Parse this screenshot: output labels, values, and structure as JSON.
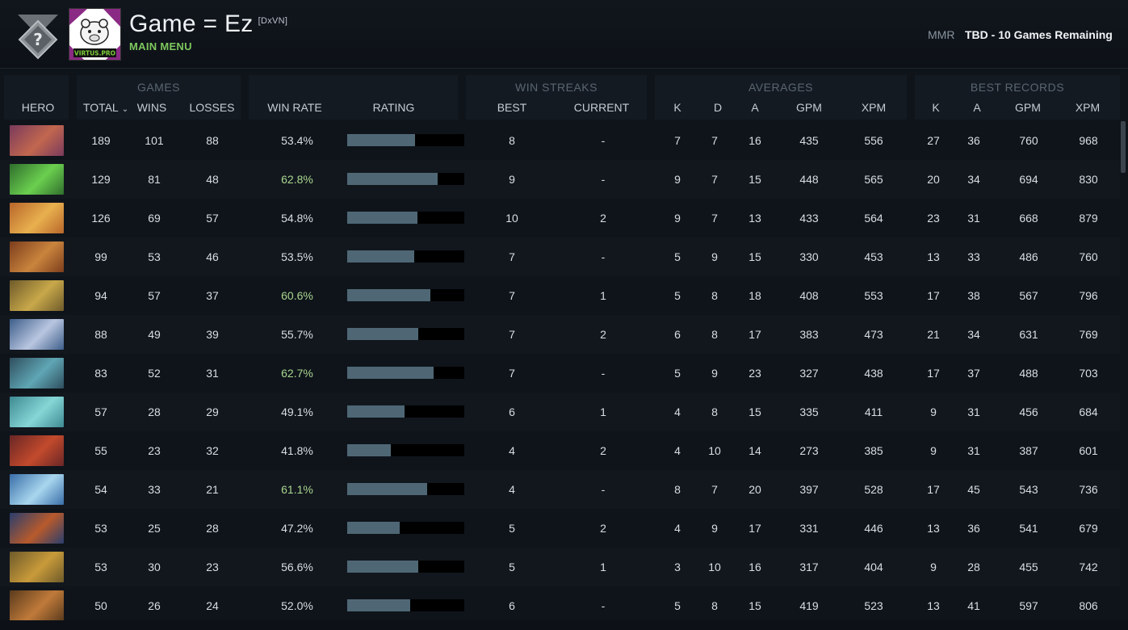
{
  "header": {
    "player_name": "Game = Ez",
    "player_tag": "[DxVN]",
    "menu_label": "MAIN MENU",
    "avatar_team_text": "VIRTUS.PRO",
    "mmr_label": "MMR",
    "mmr_value": "TBD - 10 Games Remaining",
    "rank_icon": "unranked-question-medal-icon"
  },
  "groups": {
    "games": "GAMES",
    "win_streaks": "WIN STREAKS",
    "averages": "AVERAGES",
    "best_records": "BEST RECORDS"
  },
  "columns": {
    "hero": "HERO",
    "total": "TOTAL",
    "wins": "WINS",
    "losses": "LOSSES",
    "win_rate": "WIN RATE",
    "rating": "RATING",
    "best": "BEST",
    "current": "CURRENT",
    "avg_k": "K",
    "avg_d": "D",
    "avg_a": "A",
    "avg_gpm": "GPM",
    "avg_xpm": "XPM",
    "rec_k": "K",
    "rec_a": "A",
    "rec_gpm": "GPM",
    "rec_xpm": "XPM"
  },
  "colors": {
    "accent_green": "#7ec85e",
    "high_winrate": "#a9d68e",
    "rating_bar": "#4f6775"
  },
  "rows": [
    {
      "hero_icon": "hero-portrait-1",
      "total": "189",
      "wins": "101",
      "losses": "88",
      "win_rate": "53.4%",
      "rating": 0.58,
      "best": "8",
      "current": "-",
      "k": "7",
      "d": "7",
      "a": "16",
      "gpm": "435",
      "xpm": "556",
      "rk": "27",
      "ra": "36",
      "rgpm": "760",
      "rxpm": "968",
      "hi": false
    },
    {
      "hero_icon": "hero-portrait-2",
      "total": "129",
      "wins": "81",
      "losses": "48",
      "win_rate": "62.8%",
      "rating": 0.77,
      "best": "9",
      "current": "-",
      "k": "9",
      "d": "7",
      "a": "15",
      "gpm": "448",
      "xpm": "565",
      "rk": "20",
      "ra": "34",
      "rgpm": "694",
      "rxpm": "830",
      "hi": true
    },
    {
      "hero_icon": "hero-portrait-3",
      "total": "126",
      "wins": "69",
      "losses": "57",
      "win_rate": "54.8%",
      "rating": 0.6,
      "best": "10",
      "current": "2",
      "k": "9",
      "d": "7",
      "a": "13",
      "gpm": "433",
      "xpm": "564",
      "rk": "23",
      "ra": "31",
      "rgpm": "668",
      "rxpm": "879",
      "hi": false
    },
    {
      "hero_icon": "hero-portrait-4",
      "total": "99",
      "wins": "53",
      "losses": "46",
      "win_rate": "53.5%",
      "rating": 0.57,
      "best": "7",
      "current": "-",
      "k": "5",
      "d": "9",
      "a": "15",
      "gpm": "330",
      "xpm": "453",
      "rk": "13",
      "ra": "33",
      "rgpm": "486",
      "rxpm": "760",
      "hi": false
    },
    {
      "hero_icon": "hero-portrait-5",
      "total": "94",
      "wins": "57",
      "losses": "37",
      "win_rate": "60.6%",
      "rating": 0.71,
      "best": "7",
      "current": "1",
      "k": "5",
      "d": "8",
      "a": "18",
      "gpm": "408",
      "xpm": "553",
      "rk": "17",
      "ra": "38",
      "rgpm": "567",
      "rxpm": "796",
      "hi": true
    },
    {
      "hero_icon": "hero-portrait-6",
      "total": "88",
      "wins": "49",
      "losses": "39",
      "win_rate": "55.7%",
      "rating": 0.61,
      "best": "7",
      "current": "2",
      "k": "6",
      "d": "8",
      "a": "17",
      "gpm": "383",
      "xpm": "473",
      "rk": "21",
      "ra": "34",
      "rgpm": "631",
      "rxpm": "769",
      "hi": false
    },
    {
      "hero_icon": "hero-portrait-7",
      "total": "83",
      "wins": "52",
      "losses": "31",
      "win_rate": "62.7%",
      "rating": 0.74,
      "best": "7",
      "current": "-",
      "k": "5",
      "d": "9",
      "a": "23",
      "gpm": "327",
      "xpm": "438",
      "rk": "17",
      "ra": "37",
      "rgpm": "488",
      "rxpm": "703",
      "hi": true
    },
    {
      "hero_icon": "hero-portrait-8",
      "total": "57",
      "wins": "28",
      "losses": "29",
      "win_rate": "49.1%",
      "rating": 0.49,
      "best": "6",
      "current": "1",
      "k": "4",
      "d": "8",
      "a": "15",
      "gpm": "335",
      "xpm": "411",
      "rk": "9",
      "ra": "31",
      "rgpm": "456",
      "rxpm": "684",
      "hi": false
    },
    {
      "hero_icon": "hero-portrait-9",
      "total": "55",
      "wins": "23",
      "losses": "32",
      "win_rate": "41.8%",
      "rating": 0.37,
      "best": "4",
      "current": "2",
      "k": "4",
      "d": "10",
      "a": "14",
      "gpm": "273",
      "xpm": "385",
      "rk": "9",
      "ra": "31",
      "rgpm": "387",
      "rxpm": "601",
      "hi": false
    },
    {
      "hero_icon": "hero-portrait-10",
      "total": "54",
      "wins": "33",
      "losses": "21",
      "win_rate": "61.1%",
      "rating": 0.68,
      "best": "4",
      "current": "-",
      "k": "8",
      "d": "7",
      "a": "20",
      "gpm": "397",
      "xpm": "528",
      "rk": "17",
      "ra": "45",
      "rgpm": "543",
      "rxpm": "736",
      "hi": true
    },
    {
      "hero_icon": "hero-portrait-11",
      "total": "53",
      "wins": "25",
      "losses": "28",
      "win_rate": "47.2%",
      "rating": 0.45,
      "best": "5",
      "current": "2",
      "k": "4",
      "d": "9",
      "a": "17",
      "gpm": "331",
      "xpm": "446",
      "rk": "13",
      "ra": "36",
      "rgpm": "541",
      "rxpm": "679",
      "hi": false
    },
    {
      "hero_icon": "hero-portrait-12",
      "total": "53",
      "wins": "30",
      "losses": "23",
      "win_rate": "56.6%",
      "rating": 0.61,
      "best": "5",
      "current": "1",
      "k": "3",
      "d": "10",
      "a": "16",
      "gpm": "317",
      "xpm": "404",
      "rk": "9",
      "ra": "28",
      "rgpm": "455",
      "rxpm": "742",
      "hi": false
    },
    {
      "hero_icon": "hero-portrait-13",
      "total": "50",
      "wins": "26",
      "losses": "24",
      "win_rate": "52.0%",
      "rating": 0.54,
      "best": "6",
      "current": "-",
      "k": "5",
      "d": "8",
      "a": "15",
      "gpm": "419",
      "xpm": "523",
      "rk": "13",
      "ra": "41",
      "rgpm": "597",
      "rxpm": "806",
      "hi": false
    }
  ]
}
